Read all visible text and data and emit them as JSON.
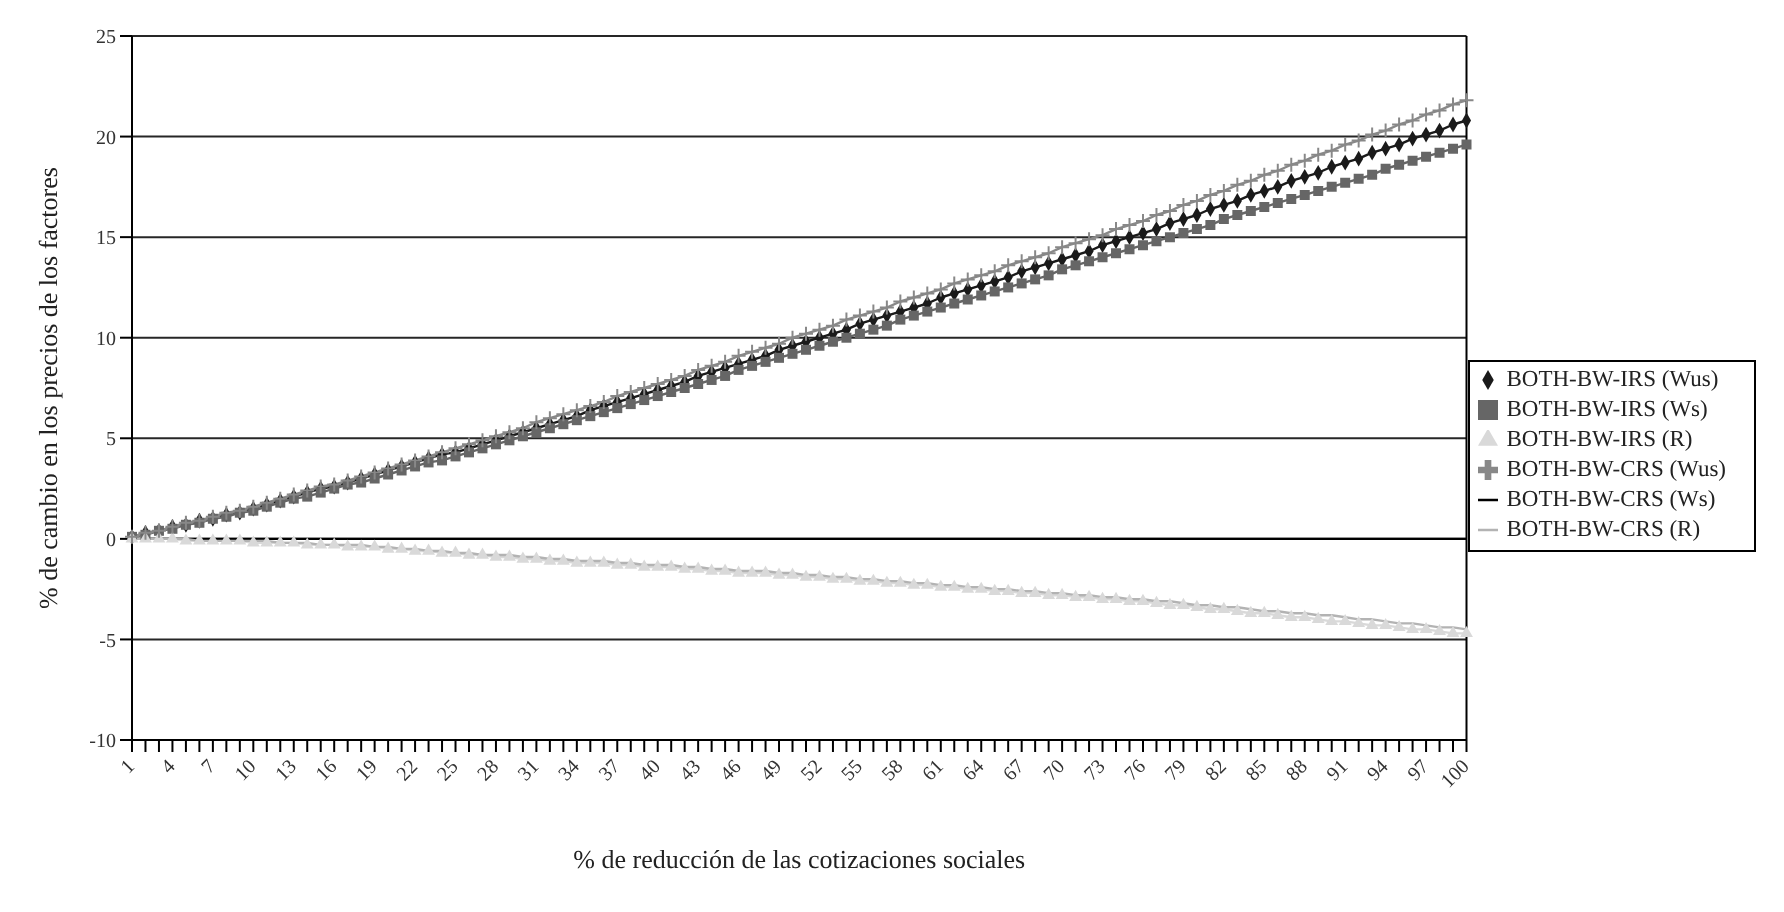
{
  "chart_data": {
    "type": "line",
    "xlabel": "% de reducción de las cotizaciones sociales",
    "ylabel": "% de cambio en los precios de los factores",
    "categories": [
      "1",
      null,
      null,
      "4",
      null,
      null,
      "7",
      null,
      null,
      "10",
      null,
      null,
      "13",
      null,
      null,
      "16",
      null,
      null,
      "19",
      null,
      null,
      "22",
      null,
      null,
      "25",
      null,
      null,
      "28",
      null,
      null,
      "31",
      null,
      null,
      "34",
      null,
      null,
      "37",
      null,
      null,
      "40",
      null,
      null,
      "43",
      null,
      null,
      "46",
      null,
      null,
      "49",
      null,
      null,
      "52",
      null,
      null,
      "55",
      null,
      null,
      "58",
      null,
      null,
      "61",
      null,
      null,
      "64",
      null,
      null,
      "67",
      null,
      null,
      "70",
      null,
      null,
      "73",
      null,
      null,
      "76",
      null,
      null,
      "79",
      null,
      null,
      "82",
      null,
      null,
      "85",
      null,
      null,
      "88",
      null,
      null,
      "91",
      null,
      null,
      "94",
      null,
      null,
      "97",
      null,
      null,
      "100"
    ],
    "ylim": [
      -10,
      25
    ],
    "yticks": [
      -10,
      -5,
      0,
      5,
      10,
      15,
      20,
      25
    ],
    "grid": "y",
    "legend": "right",
    "series": [
      {
        "name": "BOTH-BW-IRS (Wus)",
        "color": "#1a1a1a",
        "marker": "diamond",
        "values": [
          0.1,
          0.3,
          0.4,
          0.6,
          0.7,
          0.9,
          1.0,
          1.2,
          1.3,
          1.5,
          1.7,
          1.9,
          2.1,
          2.3,
          2.5,
          2.6,
          2.8,
          3.0,
          3.2,
          3.4,
          3.6,
          3.8,
          4.0,
          4.2,
          4.3,
          4.5,
          4.7,
          4.9,
          5.1,
          5.3,
          5.5,
          5.7,
          5.9,
          6.1,
          6.4,
          6.6,
          6.8,
          7.0,
          7.2,
          7.4,
          7.6,
          7.8,
          8.1,
          8.3,
          8.5,
          8.7,
          8.9,
          9.1,
          9.4,
          9.6,
          9.8,
          10.0,
          10.2,
          10.4,
          10.7,
          10.9,
          11.1,
          11.3,
          11.5,
          11.7,
          12.0,
          12.2,
          12.4,
          12.6,
          12.8,
          13.0,
          13.3,
          13.5,
          13.7,
          13.9,
          14.1,
          14.3,
          14.6,
          14.8,
          15.0,
          15.2,
          15.4,
          15.7,
          15.9,
          16.1,
          16.4,
          16.6,
          16.8,
          17.1,
          17.3,
          17.5,
          17.8,
          18.0,
          18.2,
          18.5,
          18.7,
          18.9,
          19.2,
          19.4,
          19.6,
          19.9,
          20.1,
          20.3,
          20.6,
          20.8
        ]
      },
      {
        "name": "BOTH-BW-IRS (Ws)",
        "color": "#666666",
        "marker": "square",
        "values": [
          0.1,
          0.2,
          0.4,
          0.5,
          0.7,
          0.8,
          1.0,
          1.1,
          1.3,
          1.4,
          1.6,
          1.8,
          2.0,
          2.1,
          2.3,
          2.5,
          2.7,
          2.8,
          3.0,
          3.2,
          3.4,
          3.6,
          3.8,
          3.9,
          4.1,
          4.3,
          4.5,
          4.7,
          4.9,
          5.1,
          5.3,
          5.5,
          5.7,
          5.9,
          6.1,
          6.3,
          6.5,
          6.7,
          6.9,
          7.1,
          7.3,
          7.5,
          7.7,
          7.9,
          8.1,
          8.4,
          8.6,
          8.8,
          9.0,
          9.2,
          9.4,
          9.6,
          9.8,
          10.0,
          10.2,
          10.4,
          10.6,
          10.9,
          11.1,
          11.3,
          11.5,
          11.7,
          11.9,
          12.1,
          12.3,
          12.5,
          12.7,
          12.9,
          13.1,
          13.4,
          13.6,
          13.8,
          14.0,
          14.2,
          14.4,
          14.6,
          14.8,
          15.0,
          15.2,
          15.4,
          15.6,
          15.9,
          16.1,
          16.3,
          16.5,
          16.7,
          16.9,
          17.1,
          17.3,
          17.5,
          17.7,
          17.9,
          18.1,
          18.4,
          18.6,
          18.8,
          19.0,
          19.2,
          19.4,
          19.6
        ]
      },
      {
        "name": "BOTH-BW-IRS (R)",
        "color": "#d9d9d9",
        "marker": "triangle",
        "values": [
          0,
          0,
          0,
          0,
          -0.1,
          -0.1,
          -0.1,
          -0.1,
          -0.1,
          -0.2,
          -0.2,
          -0.2,
          -0.2,
          -0.3,
          -0.3,
          -0.3,
          -0.4,
          -0.4,
          -0.4,
          -0.5,
          -0.5,
          -0.6,
          -0.6,
          -0.7,
          -0.7,
          -0.8,
          -0.8,
          -0.9,
          -0.9,
          -1.0,
          -1.0,
          -1.1,
          -1.1,
          -1.2,
          -1.2,
          -1.2,
          -1.3,
          -1.3,
          -1.4,
          -1.4,
          -1.4,
          -1.5,
          -1.5,
          -1.6,
          -1.6,
          -1.7,
          -1.7,
          -1.7,
          -1.8,
          -1.8,
          -1.9,
          -1.9,
          -2.0,
          -2.0,
          -2.1,
          -2.1,
          -2.2,
          -2.2,
          -2.3,
          -2.3,
          -2.4,
          -2.4,
          -2.5,
          -2.5,
          -2.6,
          -2.6,
          -2.7,
          -2.7,
          -2.8,
          -2.8,
          -2.9,
          -2.9,
          -3.0,
          -3.0,
          -3.1,
          -3.1,
          -3.2,
          -3.3,
          -3.3,
          -3.4,
          -3.5,
          -3.5,
          -3.6,
          -3.7,
          -3.7,
          -3.8,
          -3.9,
          -3.9,
          -4.0,
          -4.1,
          -4.1,
          -4.2,
          -4.3,
          -4.3,
          -4.4,
          -4.5,
          -4.5,
          -4.6,
          -4.7,
          -4.7
        ]
      },
      {
        "name": "BOTH-BW-CRS (Wus)",
        "color": "#888888",
        "marker": "cross",
        "values": [
          0.1,
          0.3,
          0.4,
          0.6,
          0.8,
          0.9,
          1.1,
          1.3,
          1.4,
          1.6,
          1.8,
          2.0,
          2.2,
          2.4,
          2.6,
          2.7,
          2.9,
          3.1,
          3.3,
          3.5,
          3.7,
          3.9,
          4.1,
          4.3,
          4.5,
          4.7,
          4.9,
          5.1,
          5.3,
          5.5,
          5.8,
          6.0,
          6.2,
          6.4,
          6.6,
          6.8,
          7.1,
          7.3,
          7.5,
          7.7,
          7.9,
          8.1,
          8.4,
          8.6,
          8.8,
          9.1,
          9.3,
          9.5,
          9.7,
          10.0,
          10.2,
          10.4,
          10.6,
          10.9,
          11.1,
          11.3,
          11.5,
          11.8,
          12.0,
          12.2,
          12.4,
          12.7,
          12.9,
          13.1,
          13.3,
          13.6,
          13.8,
          14.0,
          14.2,
          14.5,
          14.7,
          14.9,
          15.1,
          15.4,
          15.6,
          15.8,
          16.1,
          16.3,
          16.6,
          16.8,
          17.1,
          17.3,
          17.6,
          17.8,
          18.1,
          18.3,
          18.6,
          18.8,
          19.1,
          19.3,
          19.6,
          19.8,
          20.1,
          20.3,
          20.6,
          20.8,
          21.1,
          21.3,
          21.6,
          21.8
        ]
      },
      {
        "name": "BOTH-BW-CRS (Ws)",
        "color": "#000000",
        "marker": "none",
        "values": [
          0,
          0,
          0,
          0,
          0,
          0,
          0,
          0,
          0,
          0,
          0,
          0,
          0,
          0,
          0,
          0,
          0,
          0,
          0,
          0,
          0,
          0,
          0,
          0,
          0,
          0,
          0,
          0,
          0,
          0,
          0,
          0,
          0,
          0,
          0,
          0,
          0,
          0,
          0,
          0,
          0,
          0,
          0,
          0,
          0,
          0,
          0,
          0,
          0,
          0,
          0,
          0,
          0,
          0,
          0,
          0,
          0,
          0,
          0,
          0,
          0,
          0,
          0,
          0,
          0,
          0,
          0,
          0,
          0,
          0,
          0,
          0,
          0,
          0,
          0,
          0,
          0,
          0,
          0,
          0,
          0,
          0,
          0,
          0,
          0,
          0,
          0,
          0,
          0,
          0,
          0,
          0,
          0,
          0,
          0,
          0,
          0,
          0,
          0,
          0
        ]
      },
      {
        "name": "BOTH-BW-CRS (R)",
        "color": "#b3b3b3",
        "marker": "none",
        "values": [
          0,
          0,
          0,
          0,
          0,
          -0.1,
          -0.1,
          -0.1,
          -0.1,
          -0.1,
          -0.1,
          -0.2,
          -0.2,
          -0.2,
          -0.3,
          -0.3,
          -0.3,
          -0.3,
          -0.4,
          -0.4,
          -0.5,
          -0.5,
          -0.6,
          -0.6,
          -0.7,
          -0.7,
          -0.8,
          -0.8,
          -0.8,
          -0.9,
          -0.9,
          -1.0,
          -1.0,
          -1.1,
          -1.1,
          -1.1,
          -1.2,
          -1.2,
          -1.3,
          -1.3,
          -1.3,
          -1.4,
          -1.4,
          -1.5,
          -1.5,
          -1.6,
          -1.6,
          -1.6,
          -1.7,
          -1.7,
          -1.8,
          -1.8,
          -1.9,
          -1.9,
          -2.0,
          -2.0,
          -2.1,
          -2.1,
          -2.2,
          -2.2,
          -2.3,
          -2.3,
          -2.4,
          -2.4,
          -2.5,
          -2.5,
          -2.6,
          -2.6,
          -2.7,
          -2.7,
          -2.8,
          -2.8,
          -2.9,
          -2.9,
          -3.0,
          -3.0,
          -3.1,
          -3.1,
          -3.2,
          -3.3,
          -3.3,
          -3.4,
          -3.4,
          -3.5,
          -3.6,
          -3.6,
          -3.7,
          -3.7,
          -3.8,
          -3.8,
          -3.9,
          -4.0,
          -4.0,
          -4.1,
          -4.2,
          -4.2,
          -4.3,
          -4.4,
          -4.4,
          -4.5
        ]
      }
    ]
  }
}
